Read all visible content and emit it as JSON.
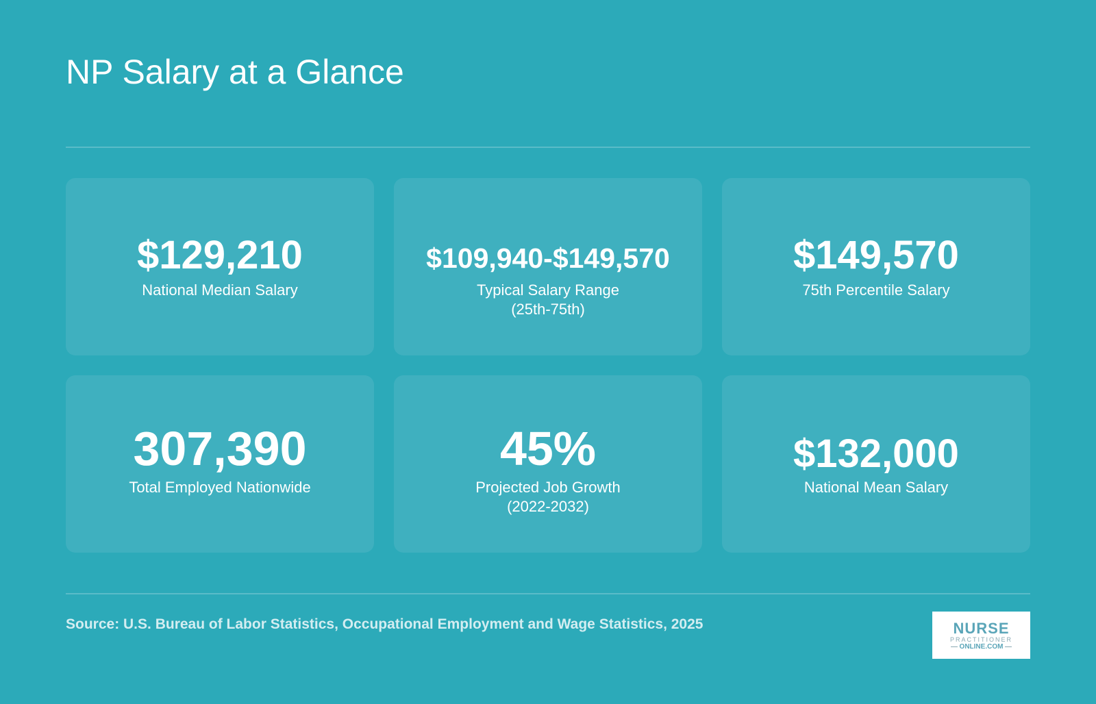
{
  "header": {
    "title": "NP Salary at a Glance"
  },
  "stats": [
    {
      "value": "$129,210",
      "label": "National Median Salary",
      "label2": ""
    },
    {
      "value": "$109,940-$149,570",
      "label": "Typical Salary Range",
      "label2": "(25th-75th)"
    },
    {
      "value": "$149,570",
      "label": "75th Percentile Salary",
      "label2": ""
    },
    {
      "value": "307,390",
      "label": "Total Employed Nationwide",
      "label2": ""
    },
    {
      "value": "45%",
      "label": "Projected Job Growth",
      "label2": "(2022-2032)"
    },
    {
      "value": "$132,000",
      "label": "National Mean Salary",
      "label2": ""
    }
  ],
  "footer": {
    "source": "Source: U.S. Bureau of Labor Statistics, Occupational Employment and Wage Statistics, 2025"
  },
  "logo": {
    "line1": "NURSE",
    "line2": "PRACTITIONER",
    "line3": "ONLINE.COM"
  },
  "colors": {
    "background": "#2caab9",
    "card": "#3fb0bf",
    "text": "#ffffff"
  }
}
